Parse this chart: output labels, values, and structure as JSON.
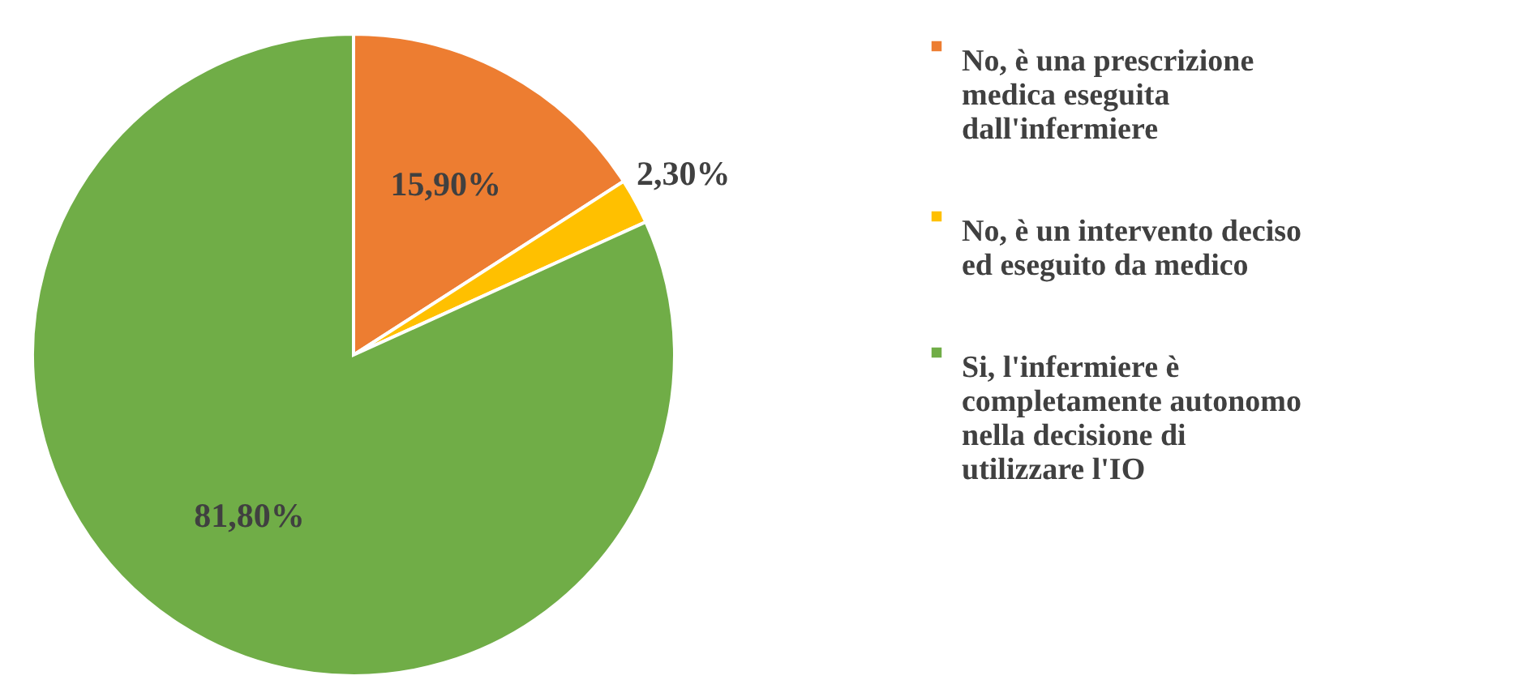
{
  "chart_data": {
    "type": "pie",
    "categories": [
      "No, è una prescrizione medica eseguita dall'infermiere",
      "No, è un intervento deciso ed eseguito da medico",
      "Si, l'infermiere è completamente autonomo nella decisione di utilizzare l'IO"
    ],
    "values": [
      15.9,
      2.3,
      81.8
    ],
    "colors": [
      "#ed7d31",
      "#ffc000",
      "#70ad47"
    ],
    "value_labels": [
      "15,90%",
      "2,30%",
      "81,80%"
    ],
    "legend": "right"
  }
}
